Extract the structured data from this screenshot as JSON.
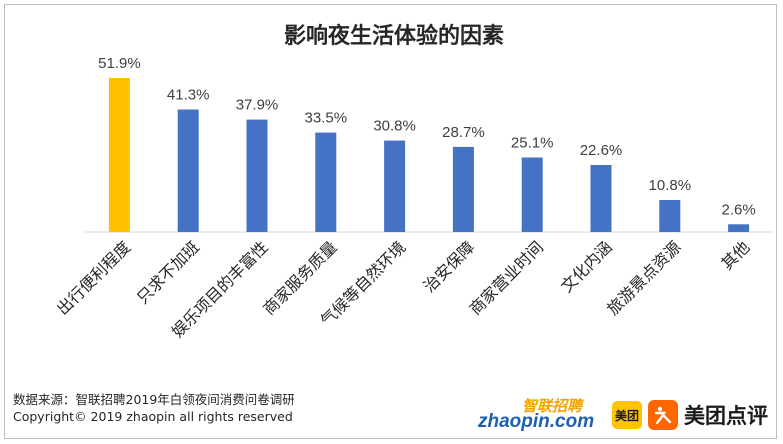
{
  "chart_data": {
    "type": "bar",
    "title": "影响夜生活体验的因素",
    "categories": [
      "出行便利程度",
      "只求不加班",
      "娱乐项目的丰富性",
      "商家服务质量",
      "气候等自然环境",
      "治安保障",
      "商家营业时间",
      "文化内涵",
      "旅游景点资源",
      "其他"
    ],
    "values": [
      51.9,
      41.3,
      37.9,
      33.5,
      30.8,
      28.7,
      25.1,
      22.6,
      10.8,
      2.6
    ],
    "value_labels": [
      "51.9%",
      "41.3%",
      "37.9%",
      "33.5%",
      "30.8%",
      "28.7%",
      "25.1%",
      "22.6%",
      "10.8%",
      "2.6%"
    ],
    "unit": "%",
    "ylim": [
      0,
      60
    ],
    "grid": false,
    "colors": {
      "highlight": "#ffc000",
      "default": "#4472c4",
      "axis": "#d9d9d9"
    },
    "highlight_index": 0
  },
  "footer": {
    "source": "数据来源：智联招聘2019年白领夜间消费问卷调研",
    "copyright": "Copyright© 2019 zhaopin all rights reserved"
  },
  "logos": {
    "zhaopin_cn": "智联招聘",
    "zhaopin_en": "zhaopin.com",
    "meituan_badge": "美团",
    "dianping": "美团点评"
  }
}
